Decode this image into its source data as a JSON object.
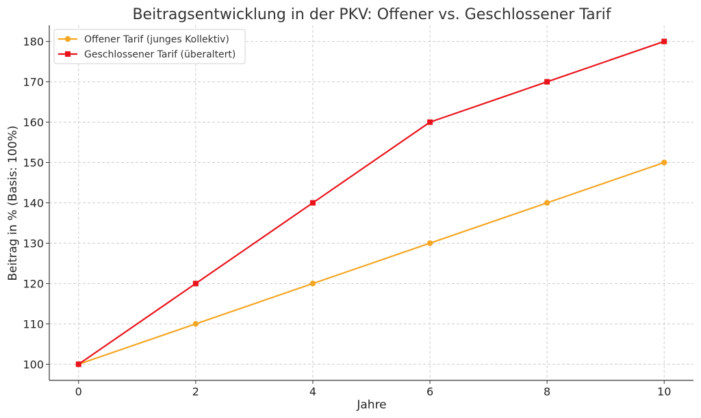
{
  "chart_data": {
    "type": "line",
    "title": "Beitragsentwicklung in der PKV: Offener vs. Geschlossener Tarif",
    "xlabel": "Jahre",
    "ylabel": "Beitrag in % (Basis: 100%)",
    "x": [
      0,
      2,
      4,
      6,
      8,
      10
    ],
    "xlim": [
      -0.5,
      10.5
    ],
    "ylim": [
      96.0,
      184.0
    ],
    "xticks": [
      0,
      2,
      4,
      6,
      8,
      10
    ],
    "yticks": [
      100,
      110,
      120,
      130,
      140,
      150,
      160,
      170,
      180
    ],
    "grid": true,
    "legend_position": "top-left",
    "series": [
      {
        "name": "Offener Tarif (junges Kollektiv)",
        "values": [
          100,
          110,
          120,
          130,
          140,
          150
        ],
        "color": "#f5a623",
        "marker": "circle"
      },
      {
        "name": "Geschlossener Tarif (überaltert)",
        "values": [
          100,
          120,
          140,
          160,
          170,
          180
        ],
        "color": "#e8131b",
        "marker": "square"
      }
    ]
  }
}
